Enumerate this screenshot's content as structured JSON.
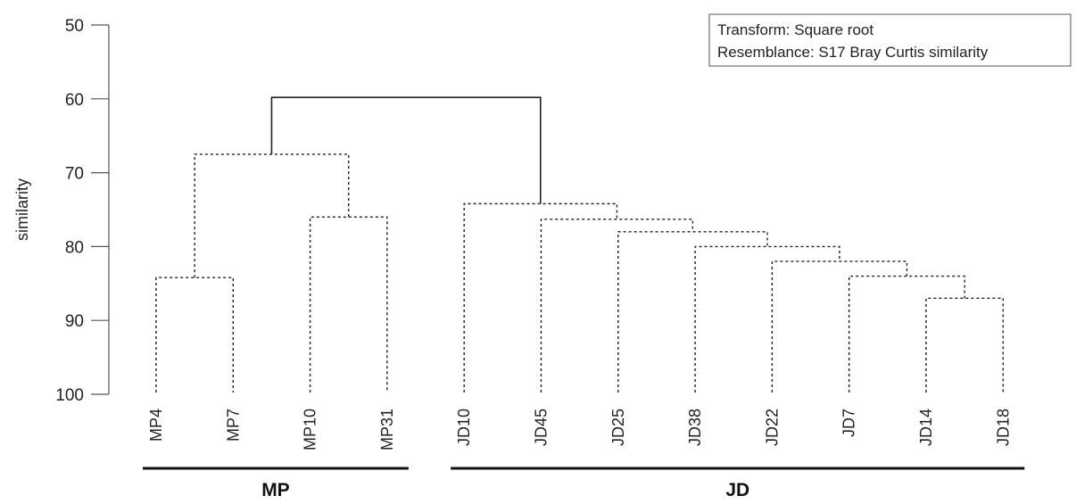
{
  "chart_data": {
    "type": "dendrogram",
    "ylabel": "similarity",
    "ylim": [
      50,
      100
    ],
    "y_ticks": [
      50,
      60,
      70,
      80,
      90,
      100
    ],
    "y_axis_inverted": true,
    "legend": {
      "placement": "top-right",
      "lines": [
        "Transform: Square root",
        "Resemblance: S17 Bray Curtis similarity"
      ]
    },
    "leaves": [
      "MP4",
      "MP7",
      "MP10",
      "MP31",
      "JD10",
      "JD45",
      "JD25",
      "JD38",
      "JD22",
      "JD7",
      "JD14",
      "JD18"
    ],
    "merges": [
      {
        "left": "MP4",
        "right": "MP7",
        "similarity": 84.2,
        "style": "dotted"
      },
      {
        "left": "MP10",
        "right": "MP31",
        "similarity": 76.0,
        "style": "dotted"
      },
      {
        "left": "m0",
        "right": "m1",
        "similarity": 67.5,
        "style": "dotted"
      },
      {
        "left": "JD14",
        "right": "JD18",
        "similarity": 87.0,
        "style": "dotted"
      },
      {
        "left": "JD7",
        "right": "m3",
        "similarity": 84.0,
        "style": "dotted"
      },
      {
        "left": "JD22",
        "right": "m4",
        "similarity": 82.0,
        "style": "dotted"
      },
      {
        "left": "JD38",
        "right": "m5",
        "similarity": 80.0,
        "style": "dotted"
      },
      {
        "left": "JD25",
        "right": "m6",
        "similarity": 78.0,
        "style": "dotted"
      },
      {
        "left": "JD45",
        "right": "m7",
        "similarity": 76.3,
        "style": "dotted"
      },
      {
        "left": "JD10",
        "right": "m8",
        "similarity": 74.2,
        "style": "dotted"
      },
      {
        "left": "m2",
        "right": "m9",
        "similarity": 59.8,
        "style": "solid"
      }
    ],
    "groups": [
      {
        "label": "MP",
        "leaves": [
          "MP4",
          "MP7",
          "MP10",
          "MP31"
        ]
      },
      {
        "label": "JD",
        "leaves": [
          "JD10",
          "JD45",
          "JD25",
          "JD38",
          "JD22",
          "JD7",
          "JD14",
          "JD18"
        ]
      }
    ]
  }
}
